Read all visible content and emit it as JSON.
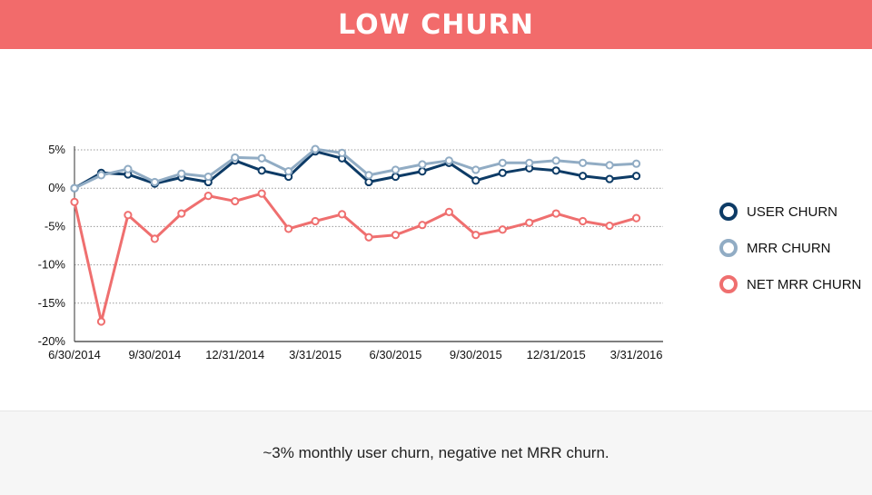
{
  "header": {
    "title": "LOW CHURN"
  },
  "footer": {
    "caption": "~3% monthly user churn, negative net MRR churn."
  },
  "chart_data": {
    "type": "line",
    "x": [
      "6/30/2014",
      "7/31/2014",
      "8/31/2014",
      "9/30/2014",
      "10/31/2014",
      "11/30/2014",
      "12/31/2014",
      "1/31/2015",
      "2/28/2015",
      "3/31/2015",
      "4/30/2015",
      "5/31/2015",
      "6/30/2015",
      "7/31/2015",
      "8/31/2015",
      "9/30/2015",
      "10/31/2015",
      "11/30/2015",
      "12/31/2015",
      "1/31/2016",
      "2/29/2016",
      "3/31/2016",
      "4/30/2016"
    ],
    "x_tick_labels": [
      "6/30/2014",
      "9/30/2014",
      "12/31/2014",
      "3/31/2015",
      "6/30/2015",
      "9/30/2015",
      "12/31/2015",
      "3/31/2016"
    ],
    "y_tick_labels": [
      "5%",
      "0%",
      "-5%",
      "-10%",
      "-15%",
      "-20%"
    ],
    "ylim": [
      -20,
      5
    ],
    "grid": true,
    "legend_position": "right",
    "series": [
      {
        "name": "USER CHURN",
        "color": "#0d3b66",
        "values": [
          0.0,
          2.0,
          1.8,
          0.6,
          1.4,
          0.8,
          3.6,
          2.3,
          1.5,
          4.8,
          3.9,
          0.8,
          1.5,
          2.2,
          3.3,
          1.0,
          2.0,
          2.6,
          2.3,
          1.6,
          1.2,
          1.6,
          null
        ]
      },
      {
        "name": "MRR CHURN",
        "color": "#91acc4",
        "values": [
          0.0,
          1.7,
          2.5,
          0.8,
          1.9,
          1.5,
          4.0,
          3.9,
          2.2,
          5.1,
          4.6,
          1.7,
          2.4,
          3.1,
          3.6,
          2.4,
          3.3,
          3.3,
          3.6,
          3.3,
          3.0,
          3.2,
          null
        ]
      },
      {
        "name": "NET MRR CHURN",
        "color": "#ef6f6f",
        "values": [
          -1.8,
          -17.4,
          -3.5,
          -6.6,
          -3.3,
          -1.0,
          -1.7,
          -0.7,
          -5.3,
          -4.3,
          -3.4,
          -6.4,
          -6.1,
          -4.8,
          -3.1,
          -6.1,
          -5.4,
          -4.5,
          -3.3,
          -4.3,
          -4.9,
          -3.9,
          null
        ]
      }
    ]
  }
}
